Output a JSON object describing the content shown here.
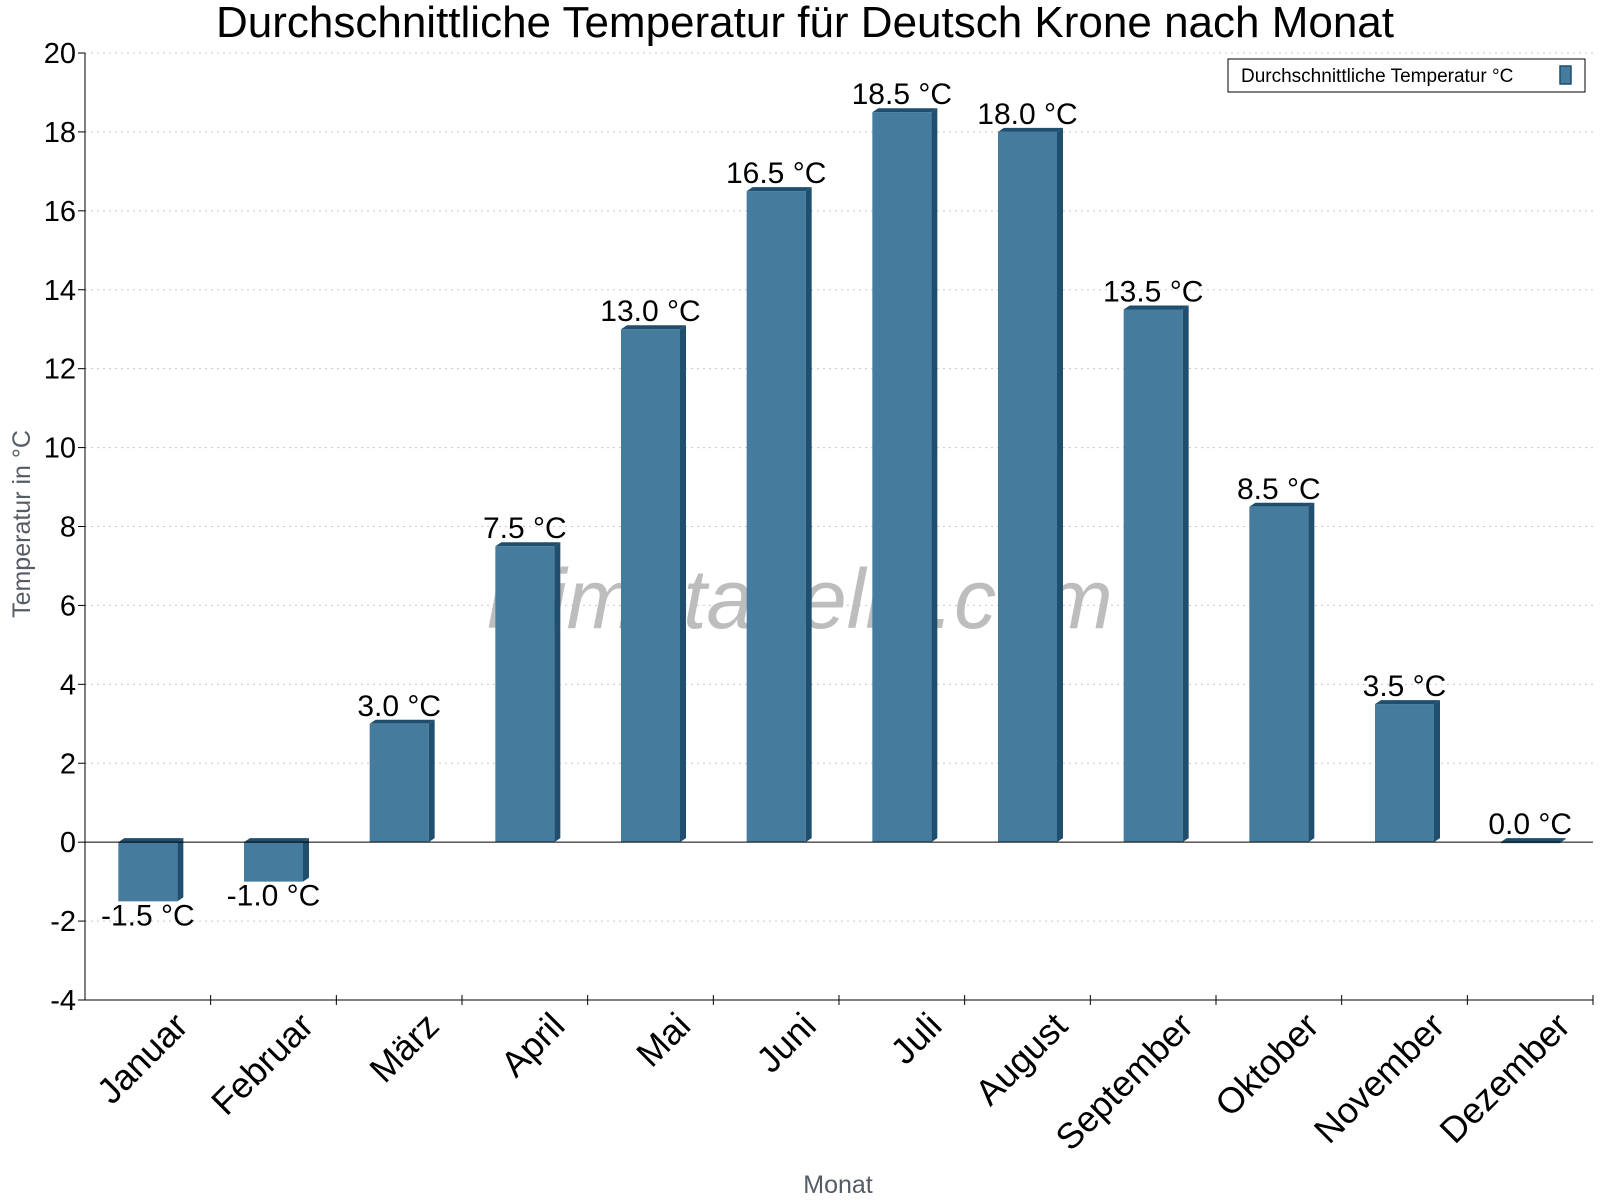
{
  "chart_data": {
    "type": "bar",
    "title": "Durchschnittliche Temperatur für Deutsch Krone nach Monat",
    "xlabel": "Monat",
    "ylabel": "Temperatur in °C",
    "categories": [
      "Januar",
      "Februar",
      "März",
      "April",
      "Mai",
      "Juni",
      "Juli",
      "August",
      "September",
      "Oktober",
      "November",
      "Dezember"
    ],
    "series": [
      {
        "name": "Durchschnittliche Temperatur °C",
        "values": [
          -1.5,
          -1.0,
          3.0,
          7.5,
          13.0,
          16.5,
          18.5,
          18.0,
          13.5,
          8.5,
          3.5,
          0.0
        ],
        "color": "#457b9d"
      }
    ],
    "value_labels": [
      "-1.5 °C",
      "-1.0 °C",
      "3.0 °C",
      "7.5 °C",
      "13.0 °C",
      "16.5 °C",
      "18.5 °C",
      "18.0 °C",
      "13.5 °C",
      "8.5 °C",
      "3.5 °C",
      "0.0 °C"
    ],
    "ylim": [
      -4,
      20
    ],
    "yticks": [
      -4,
      -2,
      0,
      2,
      4,
      6,
      8,
      10,
      12,
      14,
      16,
      18,
      20
    ],
    "grid": true,
    "legend_position": "top-right",
    "bar_color": "#457b9d",
    "bar_shade_color": "#1f4e6e",
    "watermark": "klimatabelle.com"
  }
}
